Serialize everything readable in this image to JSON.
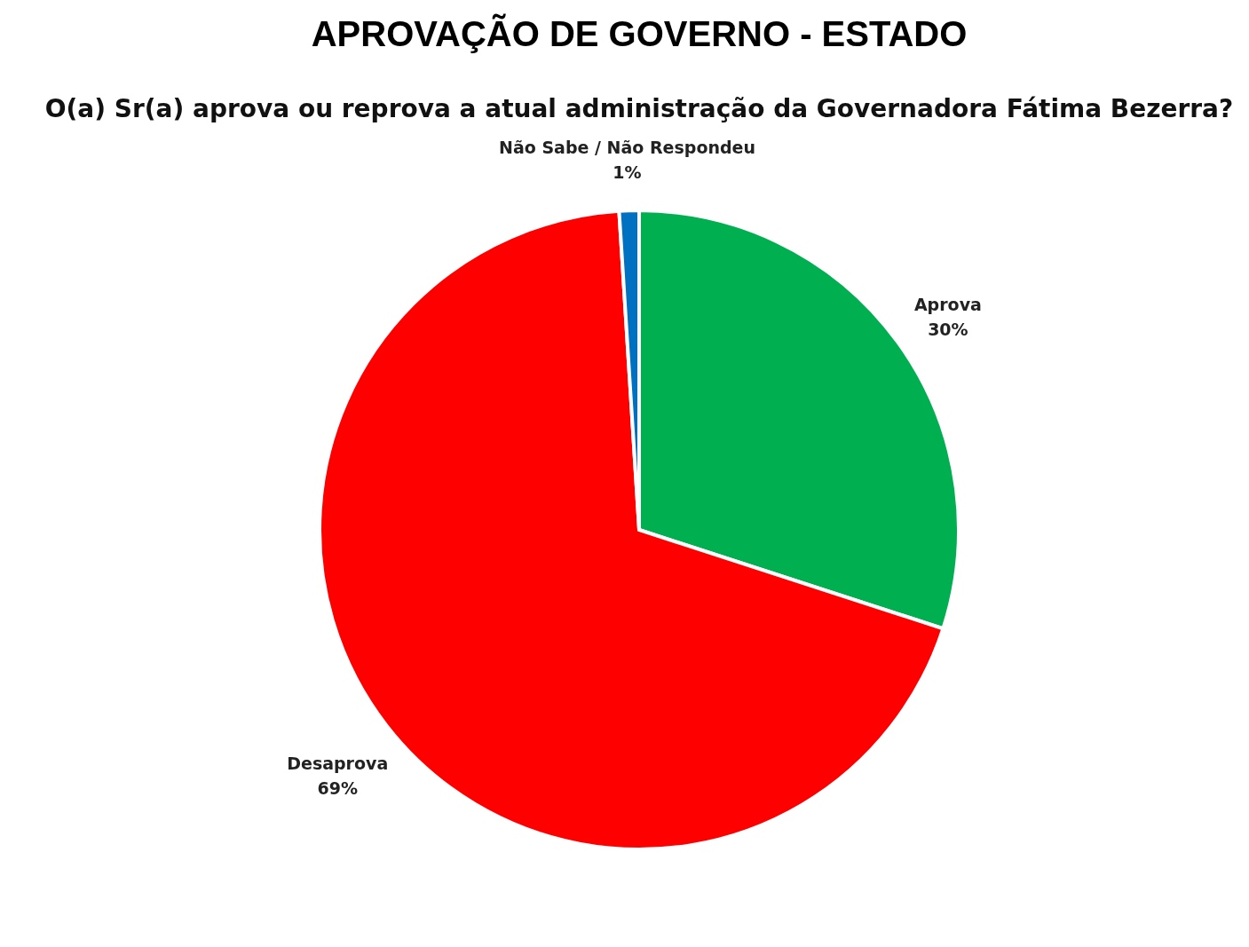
{
  "chart_data": {
    "type": "pie",
    "title": "APROVAÇÃO DE GOVERNO - ESTADO",
    "subtitle": "O(a) Sr(a) aprova ou reprova a atual administração da Governadora Fátima Bezerra?",
    "categories": [
      "Aprova",
      "Desaprova",
      "Não Sabe / Não Respondeu"
    ],
    "values": [
      30,
      69,
      1
    ],
    "colors": [
      "#00b050",
      "#ff0000",
      "#0070c0"
    ],
    "value_labels": [
      "30%",
      "69%",
      "1%"
    ],
    "legend": false
  }
}
